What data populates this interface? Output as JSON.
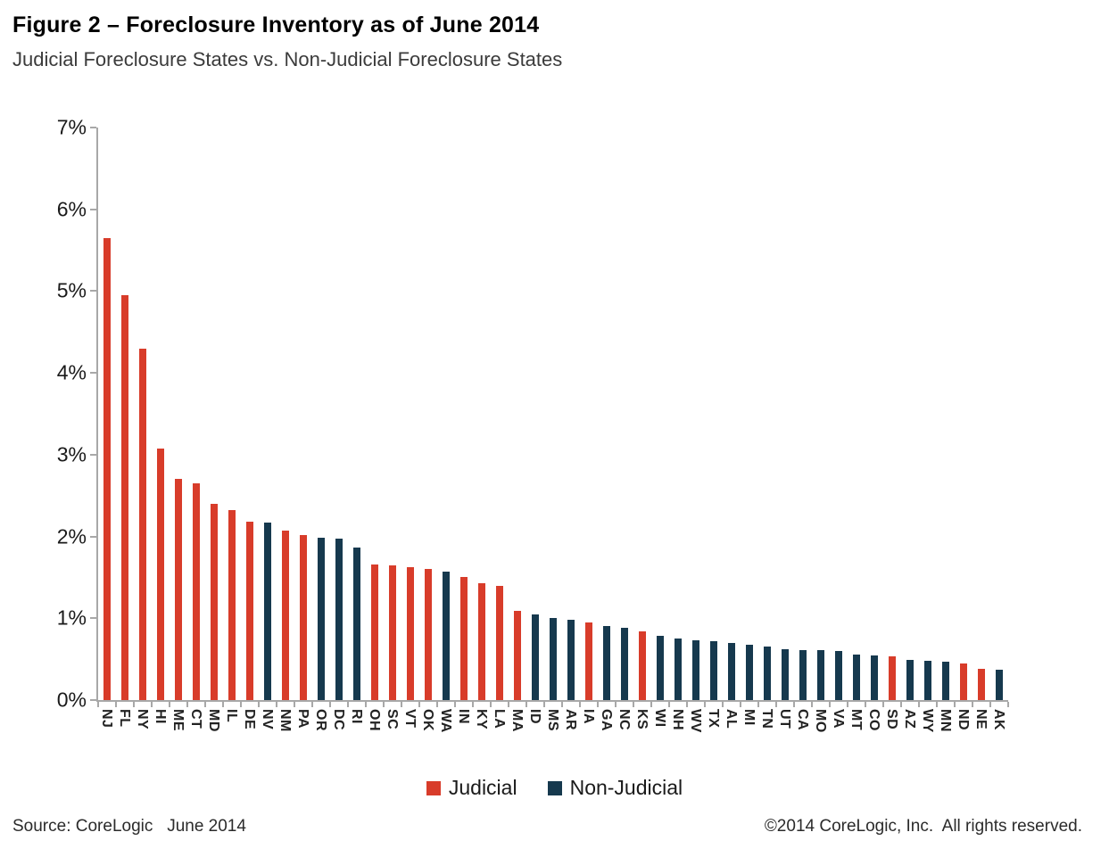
{
  "figure": {
    "title": "Figure 2 – Foreclosure Inventory as of June 2014",
    "subtitle": "Judicial Foreclosure States vs. Non-Judicial Foreclosure States"
  },
  "legend": {
    "judicial_label": "Judicial",
    "non_judicial_label": "Non-Judicial"
  },
  "footer": {
    "source": "Source: CoreLogic   June 2014",
    "copyright": "©2014 CoreLogic, Inc.  All rights reserved."
  },
  "colors": {
    "judicial": "#d83c2a",
    "non_judicial": "#16394e",
    "axis": "#a8a8a8"
  },
  "chart_data": {
    "type": "bar",
    "title": "Figure 2 – Foreclosure Inventory as of June 2014",
    "subtitle": "Judicial Foreclosure States vs. Non-Judicial Foreclosure States",
    "ylim": [
      0,
      7
    ],
    "y_ticks": [
      "0%",
      "1%",
      "2%",
      "3%",
      "4%",
      "5%",
      "6%",
      "7%"
    ],
    "grid": false,
    "legend_position": "bottom-center",
    "series_names": [
      "Judicial",
      "Non-Judicial"
    ],
    "bars": [
      {
        "label": "NJ",
        "value": 5.65,
        "series": "Judicial"
      },
      {
        "label": "FL",
        "value": 4.95,
        "series": "Judicial"
      },
      {
        "label": "NY",
        "value": 4.3,
        "series": "Judicial"
      },
      {
        "label": "HI",
        "value": 3.07,
        "series": "Judicial"
      },
      {
        "label": "ME",
        "value": 2.7,
        "series": "Judicial"
      },
      {
        "label": "CT",
        "value": 2.65,
        "series": "Judicial"
      },
      {
        "label": "MD",
        "value": 2.4,
        "series": "Judicial"
      },
      {
        "label": "IL",
        "value": 2.32,
        "series": "Judicial"
      },
      {
        "label": "DE",
        "value": 2.18,
        "series": "Judicial"
      },
      {
        "label": "NV",
        "value": 2.17,
        "series": "Non-Judicial"
      },
      {
        "label": "NM",
        "value": 2.07,
        "series": "Judicial"
      },
      {
        "label": "PA",
        "value": 2.02,
        "series": "Judicial"
      },
      {
        "label": "OR",
        "value": 1.98,
        "series": "Non-Judicial"
      },
      {
        "label": "DC",
        "value": 1.97,
        "series": "Non-Judicial"
      },
      {
        "label": "RI",
        "value": 1.86,
        "series": "Non-Judicial"
      },
      {
        "label": "OH",
        "value": 1.66,
        "series": "Judicial"
      },
      {
        "label": "SC",
        "value": 1.65,
        "series": "Judicial"
      },
      {
        "label": "VT",
        "value": 1.63,
        "series": "Judicial"
      },
      {
        "label": "OK",
        "value": 1.6,
        "series": "Judicial"
      },
      {
        "label": "WA",
        "value": 1.57,
        "series": "Non-Judicial"
      },
      {
        "label": "IN",
        "value": 1.5,
        "series": "Judicial"
      },
      {
        "label": "KY",
        "value": 1.43,
        "series": "Judicial"
      },
      {
        "label": "LA",
        "value": 1.4,
        "series": "Judicial"
      },
      {
        "label": "MA",
        "value": 1.09,
        "series": "Judicial"
      },
      {
        "label": "ID",
        "value": 1.05,
        "series": "Non-Judicial"
      },
      {
        "label": "MS",
        "value": 1.0,
        "series": "Non-Judicial"
      },
      {
        "label": "AR",
        "value": 0.98,
        "series": "Non-Judicial"
      },
      {
        "label": "IA",
        "value": 0.95,
        "series": "Judicial"
      },
      {
        "label": "GA",
        "value": 0.91,
        "series": "Non-Judicial"
      },
      {
        "label": "NC",
        "value": 0.88,
        "series": "Non-Judicial"
      },
      {
        "label": "KS",
        "value": 0.84,
        "series": "Judicial"
      },
      {
        "label": "WI",
        "value": 0.78,
        "series": "Non-Judicial"
      },
      {
        "label": "NH",
        "value": 0.75,
        "series": "Non-Judicial"
      },
      {
        "label": "WV",
        "value": 0.73,
        "series": "Non-Judicial"
      },
      {
        "label": "TX",
        "value": 0.72,
        "series": "Non-Judicial"
      },
      {
        "label": "AL",
        "value": 0.7,
        "series": "Non-Judicial"
      },
      {
        "label": "MI",
        "value": 0.68,
        "series": "Non-Judicial"
      },
      {
        "label": "TN",
        "value": 0.65,
        "series": "Non-Judicial"
      },
      {
        "label": "UT",
        "value": 0.62,
        "series": "Non-Judicial"
      },
      {
        "label": "CA",
        "value": 0.61,
        "series": "Non-Judicial"
      },
      {
        "label": "MO",
        "value": 0.61,
        "series": "Non-Judicial"
      },
      {
        "label": "VA",
        "value": 0.6,
        "series": "Non-Judicial"
      },
      {
        "label": "MT",
        "value": 0.56,
        "series": "Non-Judicial"
      },
      {
        "label": "CO",
        "value": 0.55,
        "series": "Non-Judicial"
      },
      {
        "label": "SD",
        "value": 0.53,
        "series": "Judicial"
      },
      {
        "label": "AZ",
        "value": 0.49,
        "series": "Non-Judicial"
      },
      {
        "label": "WY",
        "value": 0.48,
        "series": "Non-Judicial"
      },
      {
        "label": "MN",
        "value": 0.47,
        "series": "Non-Judicial"
      },
      {
        "label": "ND",
        "value": 0.45,
        "series": "Judicial"
      },
      {
        "label": "NE",
        "value": 0.38,
        "series": "Judicial"
      },
      {
        "label": "AK",
        "value": 0.37,
        "series": "Non-Judicial"
      }
    ]
  }
}
